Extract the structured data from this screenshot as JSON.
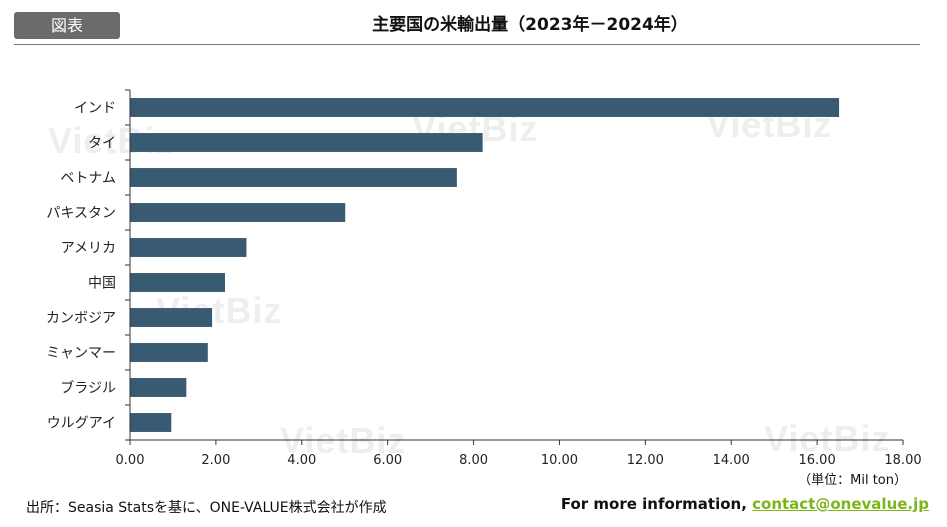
{
  "badge": "図表",
  "header": {
    "title": "主要国の米輸出量（2023年－2024年）"
  },
  "watermark": "VietBiz",
  "footer": {
    "source": "出所：Seasia Statsを基に、ONE-VALUE株式会社が作成",
    "info_label": "For more information, ",
    "info_email": "contact@onevalue.jp"
  },
  "chart_data": {
    "type": "bar",
    "orientation": "horizontal",
    "title": "主要国の米輸出量（2023年－2024年）",
    "unit_label": "（単位：Mil ton）",
    "categories": [
      "インド",
      "タイ",
      "ベトナム",
      "パキスタン",
      "アメリカ",
      "中国",
      "カンボジア",
      "ミャンマー",
      "ブラジル",
      "ウルグアイ"
    ],
    "values": [
      16.5,
      8.2,
      7.6,
      5.0,
      2.7,
      2.2,
      1.9,
      1.8,
      1.3,
      0.95
    ],
    "xlim": [
      0,
      18
    ],
    "xticks": [
      "0.00",
      "2.00",
      "4.00",
      "6.00",
      "8.00",
      "10.00",
      "12.00",
      "14.00",
      "16.00",
      "18.00"
    ],
    "bar_color": "#385a73",
    "grid": false
  }
}
